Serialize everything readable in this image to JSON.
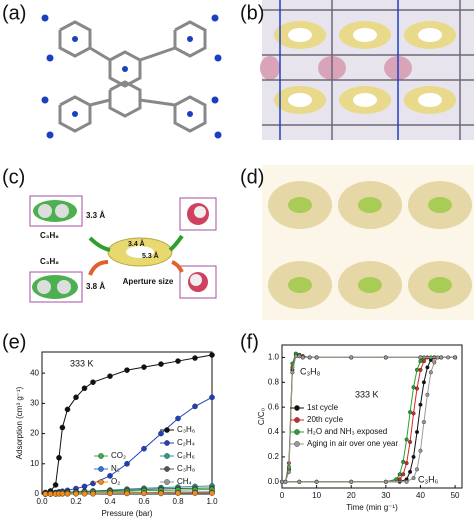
{
  "panel_labels": [
    "(a)",
    "(b)",
    "(c)",
    "(d)",
    "(e)",
    "(f)"
  ],
  "schematic_c": {
    "top_molecule": "C₃H₆",
    "top_size": "3.3 Å",
    "bottom_molecule": "C₃H₈",
    "bottom_size": "3.8 Å",
    "aperture_a": "3.4 Å",
    "aperture_b": "5.3 Å",
    "aperture_label": "Aperture size"
  },
  "chart_data": [
    {
      "type": "line",
      "xlabel": "Pressure (bar)",
      "ylabel": "Adsorption (cm³ g⁻¹)",
      "annotations": [
        "333 K"
      ],
      "xlim": [
        0,
        1
      ],
      "xticks": [
        {
          "value": 0,
          "label": "0.0"
        },
        0.2,
        0.4,
        0.6,
        0.8,
        {
          "value": 1,
          "label": "1.0"
        }
      ],
      "ylim": [
        0,
        47
      ],
      "yticks": [
        0,
        10,
        20,
        30,
        40
      ],
      "legend": "lower right",
      "x": [
        0.02,
        0.05,
        0.08,
        0.1,
        0.12,
        0.15,
        0.2,
        0.25,
        0.3,
        0.4,
        0.5,
        0.6,
        0.7,
        0.8,
        0.9,
        1.0
      ],
      "series": [
        {
          "name": "C₃H₆",
          "color": "#111111",
          "values": [
            0.5,
            1,
            3,
            12,
            22,
            28,
            32,
            35,
            37,
            39,
            41,
            42,
            43,
            44,
            45,
            46
          ]
        },
        {
          "name": "C₂H₄",
          "color": "#1f3fbf",
          "values": [
            0.1,
            0.3,
            0.5,
            0.7,
            0.9,
            1.2,
            1.8,
            2.5,
            3.5,
            6,
            10,
            15,
            20,
            25,
            29,
            32
          ]
        },
        {
          "name": "C₂H₆",
          "color": "#2a9d8f",
          "values": [
            0.1,
            0.2,
            0.3,
            0.4,
            0.5,
            0.6,
            0.8,
            0.9,
            1,
            1.3,
            1.6,
            1.9,
            2.1,
            2.3,
            2.5,
            2.7
          ]
        },
        {
          "name": "C₃H₈",
          "color": "#555555",
          "values": [
            0.1,
            0.2,
            0.3,
            0.4,
            0.5,
            0.6,
            0.7,
            0.8,
            0.9,
            1.1,
            1.3,
            1.5,
            1.7,
            1.8,
            1.9,
            2
          ]
        },
        {
          "name": "CH₄",
          "color": "#999999",
          "values": [
            0,
            0.1,
            0.1,
            0.1,
            0.2,
            0.2,
            0.2,
            0.3,
            0.3,
            0.4,
            0.5,
            0.5,
            0.6,
            0.7,
            0.7,
            0.8
          ]
        },
        {
          "name": "CO₂",
          "color": "#3cb043",
          "values": [
            0.1,
            0.2,
            0.3,
            0.3,
            0.4,
            0.4,
            0.5,
            0.6,
            0.7,
            0.8,
            0.9,
            1.1,
            1.2,
            1.3,
            1.4,
            1.5
          ]
        },
        {
          "name": "N₂",
          "color": "#3070e0",
          "values": [
            0,
            0,
            0.1,
            0.1,
            0.1,
            0.1,
            0.2,
            0.2,
            0.2,
            0.3,
            0.3,
            0.3,
            0.4,
            0.4,
            0.5,
            0.5
          ]
        },
        {
          "name": "O₂",
          "color": "#f08c1a",
          "values": [
            0,
            0,
            0,
            0.1,
            0.1,
            0.1,
            0.1,
            0.1,
            0.1,
            0.2,
            0.2,
            0.2,
            0.2,
            0.3,
            0.3,
            0.3
          ]
        }
      ]
    },
    {
      "type": "line",
      "xlabel": "Time (min g⁻¹)",
      "ylabel": "C/C₀",
      "annotations": [
        "C₃H₈",
        "333 K",
        "C₃H₆"
      ],
      "xlim": [
        0,
        52
      ],
      "xticks": [
        0,
        10,
        20,
        30,
        40,
        50
      ],
      "ylim": [
        -0.05,
        1.1
      ],
      "yticks": [
        {
          "value": 0,
          "label": "0.0"
        },
        0.2,
        0.4,
        0.6,
        0.8,
        {
          "value": 1,
          "label": "1.0"
        }
      ],
      "legend": "middle left",
      "series": [
        {
          "name": "1st cycle",
          "color": "#111111",
          "curves": [
            {
              "x": [
                0,
                1,
                2,
                3,
                4,
                5,
                6,
                8,
                10,
                20,
                30,
                40,
                50
              ],
              "values": [
                0,
                0,
                0.1,
                0.9,
                1.02,
                1.02,
                1.01,
                1,
                1,
                1,
                1,
                1,
                1
              ]
            },
            {
              "x": [
                0,
                5,
                10,
                20,
                30,
                34,
                36,
                37,
                38,
                39,
                40,
                41,
                42,
                43,
                44,
                46,
                50
              ],
              "values": [
                0,
                0,
                0,
                0,
                0,
                0,
                0.02,
                0.08,
                0.2,
                0.4,
                0.62,
                0.8,
                0.92,
                0.98,
                1,
                1,
                1
              ]
            }
          ]
        },
        {
          "name": "20th cycle",
          "color": "#d62728",
          "curves": [
            {
              "x": [
                0,
                1,
                2,
                3,
                4,
                5,
                6,
                8,
                10,
                20,
                30,
                40,
                50
              ],
              "values": [
                0,
                0,
                0.15,
                0.92,
                1.03,
                1.02,
                1.01,
                1,
                1,
                1,
                1,
                1,
                1
              ]
            },
            {
              "x": [
                0,
                5,
                10,
                20,
                30,
                34,
                35,
                36,
                37,
                38,
                39,
                40,
                41,
                42,
                44,
                46,
                50
              ],
              "values": [
                0,
                0,
                0,
                0,
                0,
                0.02,
                0.06,
                0.15,
                0.32,
                0.55,
                0.75,
                0.9,
                0.97,
                1,
                1,
                1,
                1
              ]
            }
          ]
        },
        {
          "name": "H₂O and NH₃ exposed",
          "color": "#2ca02c",
          "curves": [
            {
              "x": [
                0,
                1,
                2,
                3,
                4,
                5,
                6,
                8,
                10,
                20,
                30,
                40,
                50
              ],
              "values": [
                0,
                0,
                0.12,
                0.95,
                1.03,
                1.02,
                1,
                1,
                1,
                1,
                1,
                1,
                1
              ]
            },
            {
              "x": [
                0,
                5,
                10,
                20,
                30,
                33,
                34,
                35,
                36,
                37,
                38,
                39,
                40,
                41,
                43,
                46,
                50
              ],
              "values": [
                0,
                0,
                0,
                0,
                0,
                0.02,
                0.06,
                0.16,
                0.34,
                0.56,
                0.76,
                0.9,
                0.97,
                1,
                1,
                1,
                1
              ]
            }
          ]
        },
        {
          "name": "Aging in air over one year",
          "color": "#9a9a9a",
          "curves": [
            {
              "x": [
                0,
                1,
                2,
                3,
                4,
                5,
                6,
                8,
                10,
                20,
                30,
                40,
                50
              ],
              "values": [
                0,
                0,
                0.08,
                0.88,
                1.01,
                1.01,
                1,
                1,
                1,
                1,
                1,
                1,
                1
              ]
            },
            {
              "x": [
                0,
                5,
                10,
                20,
                30,
                36,
                38,
                39,
                40,
                41,
                42,
                43,
                44,
                45,
                46,
                48,
                50
              ],
              "values": [
                0,
                0,
                0,
                0,
                0,
                0,
                0.03,
                0.1,
                0.25,
                0.48,
                0.7,
                0.88,
                0.96,
                1,
                1,
                1,
                1
              ]
            }
          ]
        }
      ]
    }
  ]
}
